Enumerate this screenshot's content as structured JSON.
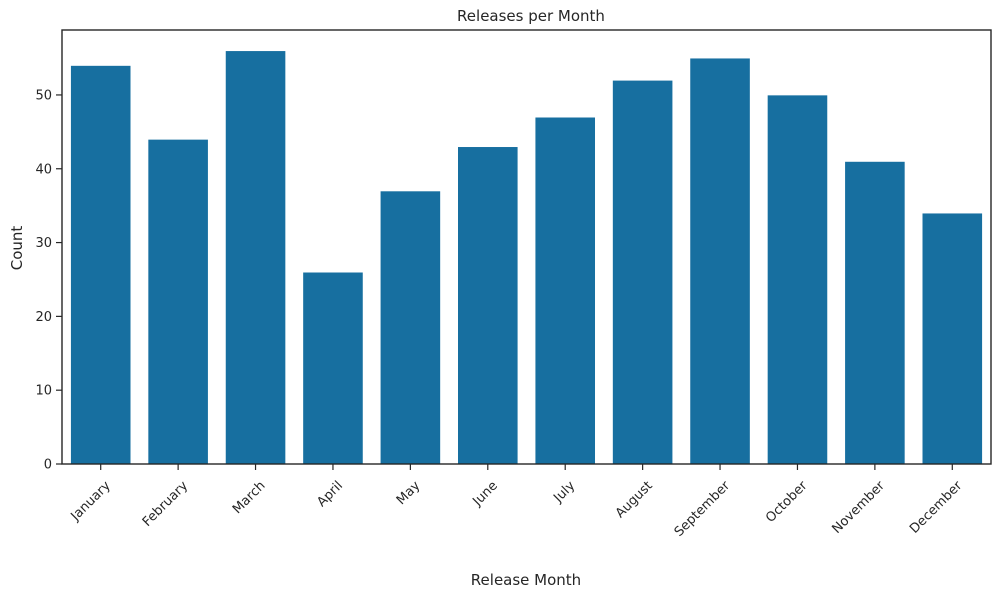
{
  "chart_data": {
    "type": "bar",
    "title": "Releases per Month",
    "xlabel": "Release Month",
    "ylabel": "Count",
    "categories": [
      "January",
      "February",
      "March",
      "April",
      "May",
      "June",
      "July",
      "August",
      "September",
      "October",
      "November",
      "December"
    ],
    "values": [
      54,
      44,
      56,
      26,
      37,
      43,
      47,
      52,
      55,
      50,
      41,
      34
    ],
    "ylim": [
      0,
      58.8
    ],
    "yticks": [
      0,
      10,
      20,
      30,
      40,
      50
    ],
    "grid": false,
    "legend": "none",
    "colors": {
      "bar": "#1f77b4",
      "bar_fill": "#176fa0",
      "axis": "#262626",
      "text": "#262626"
    }
  }
}
